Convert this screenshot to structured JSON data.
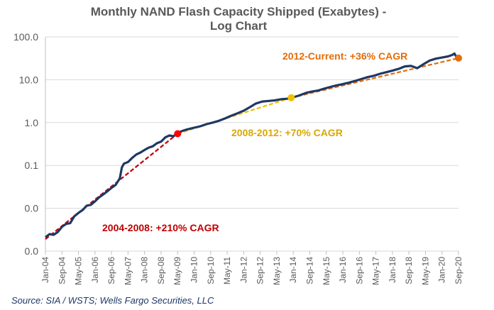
{
  "chart_data": {
    "type": "line",
    "title_lines": [
      "Monthly NAND Flash Capacity Shipped (Exabytes) -",
      "Log Chart"
    ],
    "xlabel": "",
    "ylabel": "",
    "yscale": "log",
    "ylim": [
      0.001,
      100
    ],
    "y_tick_values": [
      0.001,
      0.01,
      0.1,
      1,
      10,
      100
    ],
    "y_tick_labels": [
      "0.0",
      "0.0",
      "0.1",
      "1.0",
      "10.0",
      "100.0"
    ],
    "x_range": [
      "Jan-04",
      "Sep-20"
    ],
    "x_tick_labels": [
      "Jan-04",
      "Sep-04",
      "May-05",
      "Jan-06",
      "Sep-06",
      "May-07",
      "Jan-08",
      "Sep-08",
      "May-09",
      "Jan-10",
      "Sep-10",
      "May-11",
      "Jan-12",
      "Sep-12",
      "May-13",
      "Jan-14",
      "Sep-14",
      "May-15",
      "Jan-16",
      "Sep-16",
      "May-17",
      "Jan-18",
      "Sep-18",
      "May-19",
      "Jan-20",
      "Sep-20"
    ],
    "grid": "horizontal",
    "legend": "none",
    "series": [
      {
        "color": "#1f3864",
        "points": [
          [
            "2004-01",
            0.0021
          ],
          [
            "2004-03",
            0.0025
          ],
          [
            "2004-05",
            0.0024
          ],
          [
            "2004-07",
            0.0028
          ],
          [
            "2004-09",
            0.0037
          ],
          [
            "2004-11",
            0.0043
          ],
          [
            "2005-01",
            0.0045
          ],
          [
            "2005-03",
            0.0065
          ],
          [
            "2005-05",
            0.0078
          ],
          [
            "2005-07",
            0.0091
          ],
          [
            "2005-09",
            0.0115
          ],
          [
            "2005-11",
            0.012
          ],
          [
            "2006-01",
            0.0145
          ],
          [
            "2006-03",
            0.018
          ],
          [
            "2006-05",
            0.021
          ],
          [
            "2006-07",
            0.025
          ],
          [
            "2006-09",
            0.03
          ],
          [
            "2006-11",
            0.035
          ],
          [
            "2007-01",
            0.05
          ],
          [
            "2007-02",
            0.09
          ],
          [
            "2007-03",
            0.11
          ],
          [
            "2007-05",
            0.12
          ],
          [
            "2007-07",
            0.15
          ],
          [
            "2007-09",
            0.18
          ],
          [
            "2007-11",
            0.2
          ],
          [
            "2008-01",
            0.23
          ],
          [
            "2008-03",
            0.26
          ],
          [
            "2008-05",
            0.28
          ],
          [
            "2008-07",
            0.33
          ],
          [
            "2008-09",
            0.36
          ],
          [
            "2008-11",
            0.45
          ],
          [
            "2009-01",
            0.5
          ],
          [
            "2009-03",
            0.48
          ],
          [
            "2009-05",
            0.57
          ],
          [
            "2009-07",
            0.63
          ],
          [
            "2009-09",
            0.68
          ],
          [
            "2009-11",
            0.72
          ],
          [
            "2010-01",
            0.76
          ],
          [
            "2010-04",
            0.82
          ],
          [
            "2010-07",
            0.92
          ],
          [
            "2010-10",
            1.0
          ],
          [
            "2011-01",
            1.1
          ],
          [
            "2011-04",
            1.25
          ],
          [
            "2011-07",
            1.45
          ],
          [
            "2011-10",
            1.65
          ],
          [
            "2012-01",
            1.9
          ],
          [
            "2012-04",
            2.3
          ],
          [
            "2012-07",
            2.8
          ],
          [
            "2012-10",
            3.1
          ],
          [
            "2013-01",
            3.2
          ],
          [
            "2013-04",
            3.3
          ],
          [
            "2013-07",
            3.5
          ],
          [
            "2013-10",
            3.6
          ],
          [
            "2014-01",
            3.9
          ],
          [
            "2014-04",
            4.3
          ],
          [
            "2014-07",
            4.9
          ],
          [
            "2014-10",
            5.3
          ],
          [
            "2015-01",
            5.6
          ],
          [
            "2015-04",
            6.2
          ],
          [
            "2015-07",
            6.8
          ],
          [
            "2015-10",
            7.4
          ],
          [
            "2016-01",
            7.9
          ],
          [
            "2016-04",
            8.6
          ],
          [
            "2016-07",
            9.4
          ],
          [
            "2016-10",
            10.4
          ],
          [
            "2017-01",
            11.5
          ],
          [
            "2017-04",
            12.4
          ],
          [
            "2017-07",
            13.8
          ],
          [
            "2017-10",
            15.0
          ],
          [
            "2018-01",
            16.3
          ],
          [
            "2018-04",
            17.9
          ],
          [
            "2018-07",
            20.5
          ],
          [
            "2018-10",
            21.0
          ],
          [
            "2019-01",
            18.6
          ],
          [
            "2019-04",
            23.0
          ],
          [
            "2019-07",
            28.0
          ],
          [
            "2019-10",
            31.0
          ],
          [
            "2020-01",
            33.0
          ],
          [
            "2020-04",
            35.0
          ],
          [
            "2020-06",
            38.0
          ],
          [
            "2020-07",
            41.0
          ],
          [
            "2020-08",
            34.0
          ],
          [
            "2020-09",
            32.0
          ]
        ]
      }
    ],
    "trend_lines": [
      {
        "label": "2004-2008: +210% CAGR",
        "color": "#c00000",
        "start": [
          "2004-01",
          0.0019
        ],
        "end": [
          "2009-05",
          0.55
        ]
      },
      {
        "label": "2008-2012: +70% CAGR",
        "color": "#f0c000",
        "start": [
          "2009-05",
          0.55
        ],
        "end": [
          "2013-12",
          3.8
        ]
      },
      {
        "label": "2012-Current: +36% CAGR",
        "color": "#e36c0a",
        "start": [
          "2013-12",
          3.8
        ],
        "end": [
          "2020-09",
          32.0
        ]
      }
    ],
    "markers": [
      {
        "x": "2009-05",
        "y": 0.55,
        "color": "#ff0000"
      },
      {
        "x": "2013-12",
        "y": 3.8,
        "color": "#f0c000"
      },
      {
        "x": "2020-09",
        "y": 32.0,
        "color": "#e36c0a"
      }
    ]
  },
  "source": "Source: SIA / WSTS; Wells Fargo Securities, LLC"
}
